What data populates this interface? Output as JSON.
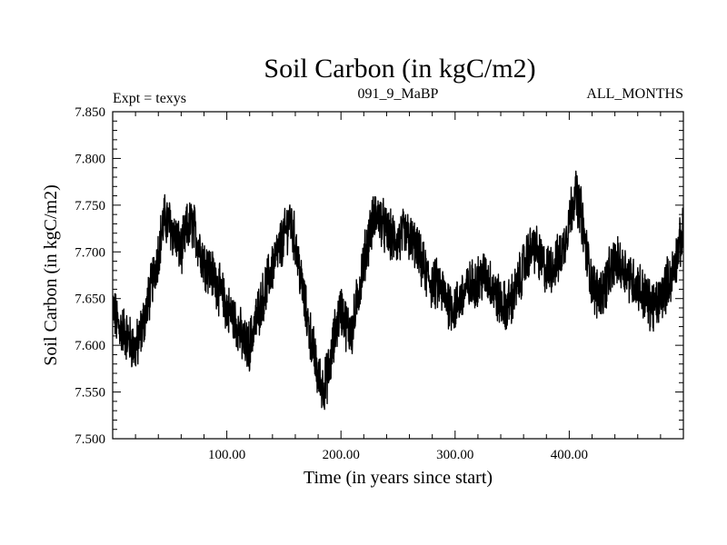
{
  "chart_data": {
    "type": "line",
    "title": "Soil Carbon (in kgC/m2)",
    "subtitle_left": "Expt = texys",
    "subtitle_center": "091_9_MaBP",
    "subtitle_right": "ALL_MONTHS",
    "xlabel": "Time (in years since start)",
    "ylabel": "Soil Carbon (in kgC/m2)",
    "xlim": [
      0,
      500
    ],
    "ylim": [
      7.5,
      7.85
    ],
    "xticks": [
      100,
      200,
      300,
      400
    ],
    "xtick_labels": [
      "100.00",
      "200.00",
      "300.00",
      "400.00"
    ],
    "yticks": [
      7.5,
      7.55,
      7.6,
      7.65,
      7.7,
      7.75,
      7.8,
      7.85
    ],
    "ytick_labels": [
      "7.500",
      "7.550",
      "7.600",
      "7.650",
      "7.700",
      "7.750",
      "7.800",
      "7.850"
    ],
    "grid": false,
    "line_color": "#000000",
    "series": [
      {
        "x": [
          0,
          5,
          10,
          15,
          20,
          25,
          30,
          35,
          40,
          45,
          50,
          55,
          60,
          65,
          70,
          75,
          80,
          85,
          90,
          95,
          100,
          105,
          110,
          115,
          120,
          125,
          130,
          135,
          140,
          145,
          150,
          155,
          160,
          165,
          170,
          175,
          180,
          185,
          190,
          195,
          200,
          205,
          210,
          215,
          220,
          225,
          230,
          235,
          240,
          245,
          250,
          255,
          260,
          265,
          270,
          275,
          280,
          285,
          290,
          295,
          300,
          305,
          310,
          315,
          320,
          325,
          330,
          335,
          340,
          345,
          350,
          355,
          360,
          365,
          370,
          375,
          380,
          385,
          390,
          395,
          400,
          405,
          410,
          415,
          420,
          425,
          430,
          435,
          440,
          445,
          450,
          455,
          460,
          465,
          470,
          475,
          480,
          485,
          490,
          495,
          500
        ],
        "y": [
          7.64,
          7.62,
          7.615,
          7.605,
          7.595,
          7.615,
          7.64,
          7.67,
          7.7,
          7.735,
          7.73,
          7.715,
          7.7,
          7.725,
          7.73,
          7.71,
          7.69,
          7.68,
          7.67,
          7.655,
          7.64,
          7.63,
          7.62,
          7.6,
          7.6,
          7.625,
          7.645,
          7.665,
          7.685,
          7.7,
          7.715,
          7.735,
          7.71,
          7.67,
          7.63,
          7.6,
          7.565,
          7.555,
          7.575,
          7.615,
          7.64,
          7.62,
          7.615,
          7.655,
          7.69,
          7.72,
          7.74,
          7.735,
          7.72,
          7.715,
          7.71,
          7.72,
          7.715,
          7.705,
          7.69,
          7.675,
          7.665,
          7.665,
          7.655,
          7.645,
          7.64,
          7.65,
          7.66,
          7.665,
          7.67,
          7.675,
          7.67,
          7.655,
          7.645,
          7.64,
          7.65,
          7.665,
          7.685,
          7.7,
          7.705,
          7.69,
          7.68,
          7.685,
          7.69,
          7.705,
          7.735,
          7.765,
          7.745,
          7.7,
          7.665,
          7.655,
          7.66,
          7.675,
          7.69,
          7.685,
          7.68,
          7.67,
          7.665,
          7.655,
          7.645,
          7.64,
          7.65,
          7.665,
          7.675,
          7.7,
          7.72
        ],
        "band": 0.024
      }
    ]
  }
}
